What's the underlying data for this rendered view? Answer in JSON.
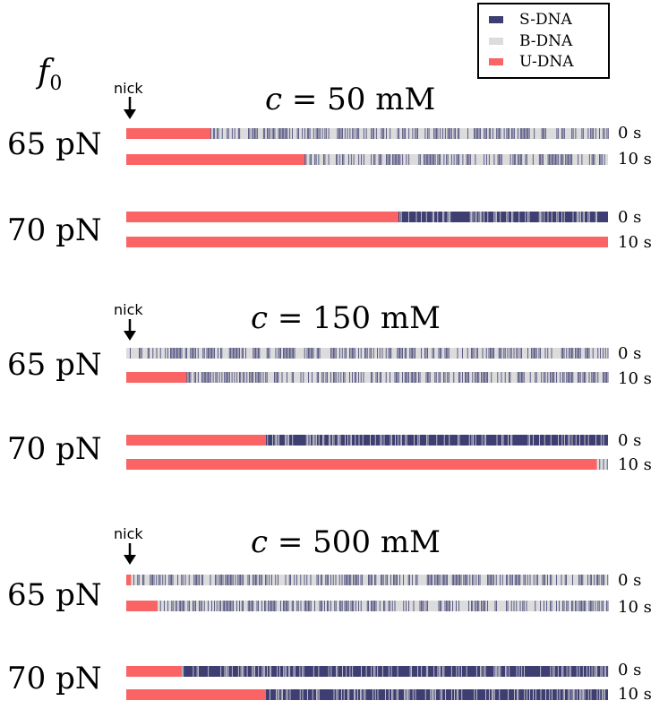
{
  "colors": {
    "s_dna": "#3e3e72",
    "b_dna": "#dcdcdc",
    "u_dna": "#fa6464"
  },
  "legend": {
    "entries": [
      {
        "label": "S-DNA",
        "color": "#3e3e72"
      },
      {
        "label": "B-DNA",
        "color": "#dcdcdc"
      },
      {
        "label": "U-DNA",
        "color": "#fa6464"
      }
    ]
  },
  "force_axis_label": {
    "symbol": "f",
    "subscript": "0"
  },
  "nick_label": "nick",
  "panels": [
    {
      "concentration": {
        "var": "c",
        "rest": "= 50 mM"
      },
      "groups": [
        {
          "force": "65 pN",
          "rows": [
            {
              "time": "0 s",
              "u_fraction": 0.175,
              "rest": "mixed"
            },
            {
              "time": "10 s",
              "u_fraction": 0.37,
              "rest": "mixed"
            }
          ]
        },
        {
          "force": "70 pN",
          "rows": [
            {
              "time": "0 s",
              "u_fraction": 0.565,
              "rest": "s"
            },
            {
              "time": "10 s",
              "u_fraction": 1.0,
              "rest": "s"
            }
          ]
        }
      ]
    },
    {
      "concentration": {
        "var": "c",
        "rest": "= 150 mM"
      },
      "groups": [
        {
          "force": "65 pN",
          "rows": [
            {
              "time": "0 s",
              "u_fraction": 0.0,
              "rest": "mixed"
            },
            {
              "time": "10 s",
              "u_fraction": 0.125,
              "rest": "mixed"
            }
          ]
        },
        {
          "force": "70 pN",
          "rows": [
            {
              "time": "0 s",
              "u_fraction": 0.29,
              "rest": "s"
            },
            {
              "time": "10 s",
              "u_fraction": 0.977,
              "rest": "mixed"
            }
          ]
        }
      ]
    },
    {
      "concentration": {
        "var": "c",
        "rest": "= 500 mM"
      },
      "groups": [
        {
          "force": "65 pN",
          "rows": [
            {
              "time": "0 s",
              "u_fraction": 0.01,
              "rest": "mixed"
            },
            {
              "time": "10 s",
              "u_fraction": 0.065,
              "rest": "mixed"
            }
          ]
        },
        {
          "force": "70 pN",
          "rows": [
            {
              "time": "0 s",
              "u_fraction": 0.115,
              "rest": "s"
            },
            {
              "time": "10 s",
              "u_fraction": 0.29,
              "rest": "s"
            }
          ]
        }
      ]
    }
  ]
}
